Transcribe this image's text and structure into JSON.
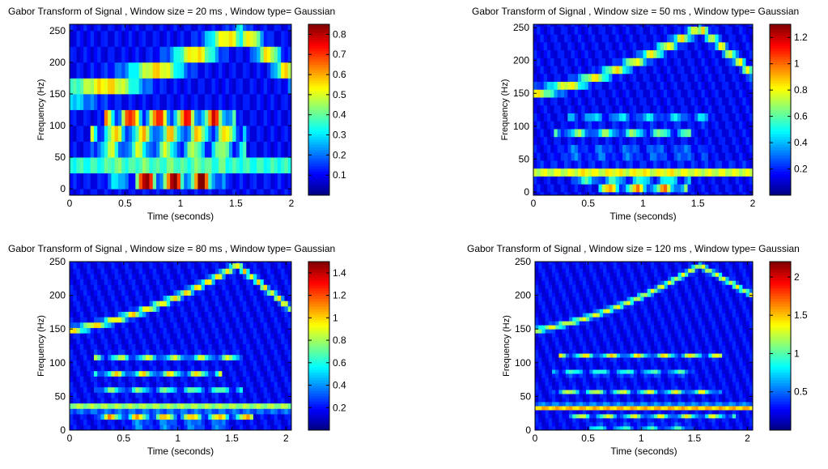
{
  "chart_data": [
    {
      "type": "heatmap",
      "title": "Gabor Transform of Signal ,  Window size = 20 ms , Window type= Gaussian",
      "xlabel": "Time (seconds)",
      "ylabel": "Frequency (Hz)",
      "xlim": [
        0,
        2
      ],
      "ylim": [
        -10,
        260
      ],
      "xticks": [
        "0",
        "0.5",
        "1",
        "1.5",
        "2"
      ],
      "yticks": [
        "0",
        "50",
        "100",
        "150",
        "200",
        "250"
      ],
      "colorbar": {
        "min": 0,
        "max": 0.85,
        "ticks": [
          "0.1",
          "0.2",
          "0.3",
          "0.4",
          "0.5",
          "0.6",
          "0.7",
          "0.8"
        ]
      },
      "bin_hz": 25,
      "chirp": {
        "t_start": 0,
        "f_start": 150,
        "t_peak": 1.55,
        "f_peak": 250,
        "t_end": 2,
        "f_end": 180,
        "amp": 0.45
      },
      "constant_tones": [
        {
          "f": 33,
          "t0": 0,
          "t1": 2,
          "amp": 0.3
        }
      ],
      "notes": [
        {
          "f": 112,
          "t0": 0.3,
          "t1": 1.5,
          "amp": 0.65
        },
        {
          "f": 85,
          "t0": 0.2,
          "t1": 1.6,
          "amp": 0.5
        },
        {
          "f": 58,
          "t0": 0.2,
          "t1": 1.6,
          "amp": 0.45
        },
        {
          "f": 22,
          "t0": 0.3,
          "t1": 1.4,
          "amp": 0.45
        },
        {
          "f": 10,
          "t0": 0.6,
          "t1": 1.3,
          "amp": 0.6
        }
      ]
    },
    {
      "type": "heatmap",
      "title": "Gabor Transform of Signal ,  Window size = 50 ms , Window type= Gaussian",
      "xlabel": "Time (seconds)",
      "ylabel": "Frequency (Hz)",
      "xlim": [
        0,
        2
      ],
      "ylim": [
        -5,
        255
      ],
      "xticks": [
        "0",
        "0.5",
        "1",
        "1.5",
        "2"
      ],
      "yticks": [
        "0",
        "50",
        "100",
        "150",
        "200",
        "250"
      ],
      "colorbar": {
        "min": 0,
        "max": 1.3,
        "ticks": [
          "0.2",
          "0.4",
          "0.6",
          "0.8",
          "1",
          "1.2"
        ]
      },
      "bin_hz": 12,
      "chirp": {
        "t_start": 0,
        "f_start": 150,
        "t_peak": 1.52,
        "f_peak": 250,
        "t_end": 2,
        "f_end": 180,
        "amp": 0.65
      },
      "constant_tones": [
        {
          "f": 33,
          "t0": 0,
          "t1": 2,
          "amp": 0.85
        }
      ],
      "notes": [
        {
          "f": 110,
          "t0": 0.3,
          "t1": 1.6,
          "amp": 0.55
        },
        {
          "f": 88,
          "t0": 0.2,
          "t1": 1.45,
          "amp": 0.6
        },
        {
          "f": 60,
          "t0": 0.2,
          "t1": 1.6,
          "amp": 0.6
        },
        {
          "f": 22,
          "t0": 0.35,
          "t1": 1.45,
          "amp": 0.75
        },
        {
          "f": 3,
          "t0": 0.6,
          "t1": 1.4,
          "amp": 1.15
        }
      ]
    },
    {
      "type": "heatmap",
      "title": "Gabor Transform of Signal ,  Window size = 80 ms , Window type= Gaussian",
      "xlabel": "Time (seconds)",
      "ylabel": "Frequency (Hz)",
      "xlim": [
        0,
        2.05
      ],
      "ylim": [
        0,
        250
      ],
      "xticks": [
        "0",
        "0.5",
        "1",
        "1.5",
        "2"
      ],
      "yticks": [
        "0",
        "50",
        "100",
        "150",
        "200",
        "250"
      ],
      "colorbar": {
        "min": 0,
        "max": 1.5,
        "ticks": [
          "0.2",
          "0.4",
          "0.6",
          "0.8",
          "1",
          "1.2",
          "1.4"
        ]
      },
      "bin_hz": 8,
      "chirp": {
        "t_start": 0,
        "f_start": 148,
        "t_peak": 1.55,
        "f_peak": 245,
        "t_end": 2.05,
        "f_end": 180,
        "amp": 0.8
      },
      "constant_tones": [
        {
          "f": 33,
          "t0": 0,
          "t1": 2.05,
          "amp": 1.35
        }
      ],
      "notes": [
        {
          "f": 110,
          "t0": 0.22,
          "t1": 1.6,
          "amp": 0.95
        },
        {
          "f": 85,
          "t0": 0.22,
          "t1": 1.4,
          "amp": 0.85
        },
        {
          "f": 58,
          "t0": 0.22,
          "t1": 1.6,
          "amp": 0.8
        },
        {
          "f": 20,
          "t0": 0.25,
          "t1": 1.7,
          "amp": 0.9
        },
        {
          "f": 8,
          "t0": 0.55,
          "t1": 1.45,
          "amp": 0.85
        }
      ]
    },
    {
      "type": "heatmap",
      "title": "Gabor Transform of Signal ,  Window size = 120 ms , Window type= Gaussian",
      "xlabel": "Time (seconds)",
      "ylabel": "Frequency (Hz)",
      "xlim": [
        0,
        2.05
      ],
      "ylim": [
        0,
        250
      ],
      "xticks": [
        "0",
        "0.5",
        "1",
        "1.5",
        "2"
      ],
      "yticks": [
        "0",
        "50",
        "100",
        "150",
        "200",
        "250"
      ],
      "colorbar": {
        "min": 0,
        "max": 2.2,
        "ticks": [
          "0.5",
          "1",
          "1.5",
          "2"
        ]
      },
      "bin_hz": 6,
      "chirp": {
        "t_start": 0,
        "f_start": 148,
        "t_peak": 1.55,
        "f_peak": 245,
        "t_end": 2.05,
        "f_end": 200,
        "amp": 1.05
      },
      "constant_tones": [
        {
          "f": 35,
          "t0": 0,
          "t1": 2.05,
          "amp": 2.05
        }
      ],
      "notes": [
        {
          "f": 110,
          "t0": 0.22,
          "t1": 1.75,
          "amp": 1.3
        },
        {
          "f": 85,
          "t0": 0.15,
          "t1": 1.5,
          "amp": 1.2
        },
        {
          "f": 58,
          "t0": 0.15,
          "t1": 1.75,
          "amp": 1.2
        },
        {
          "f": 20,
          "t0": 0.3,
          "t1": 1.9,
          "amp": 1.2
        },
        {
          "f": 5,
          "t0": 0.5,
          "t1": 1.5,
          "amp": 1.1
        }
      ]
    }
  ]
}
